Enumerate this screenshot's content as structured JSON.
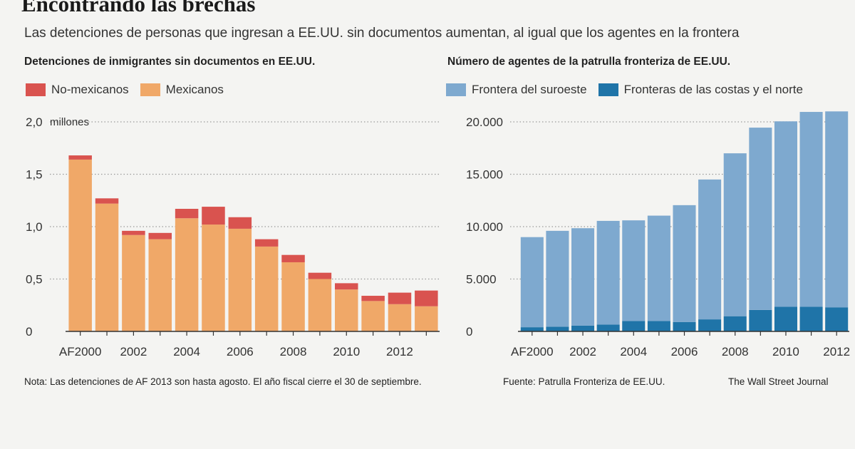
{
  "header": {
    "title": "Encontrando las brechas",
    "subtitle": "Las detenciones de personas que ingresan a EE.UU. sin documentos  aumentan,  al igual que los agentes en la frontera"
  },
  "footer": {
    "note": "Nota: Las detenciones de AF 2013 son hasta agosto. El año fiscal cierre el 30 de septiembre.",
    "source": "Fuente: Patrulla Fronteriza de EE.UU.",
    "credit": "The Wall Street Journal"
  },
  "chart_data": [
    {
      "type": "bar",
      "stacked": true,
      "title": "Detenciones de inmigrantes sin documentos en EE.UU.",
      "unit_label": "millones",
      "x": [
        2000,
        2001,
        2002,
        2003,
        2004,
        2005,
        2006,
        2007,
        2008,
        2009,
        2010,
        2011,
        2012,
        2013
      ],
      "x_tick_labels": [
        {
          "x": 2000,
          "label": "AF2000"
        },
        {
          "x": 2002,
          "label": "2002"
        },
        {
          "x": 2004,
          "label": "2004"
        },
        {
          "x": 2006,
          "label": "2006"
        },
        {
          "x": 2008,
          "label": "2008"
        },
        {
          "x": 2010,
          "label": "2010"
        },
        {
          "x": 2012,
          "label": "2012"
        }
      ],
      "y_ticks": [
        {
          "value": 0,
          "label": "0"
        },
        {
          "value": 0.5,
          "label": "0,5"
        },
        {
          "value": 1.0,
          "label": "1,0"
        },
        {
          "value": 1.5,
          "label": "1,5"
        },
        {
          "value": 2.0,
          "label": "2,0"
        }
      ],
      "ylim": [
        0,
        2.0
      ],
      "grid": true,
      "legend_position": "top-left",
      "series": [
        {
          "name": "Mexicanos",
          "color": "#f0a868",
          "values": [
            1.64,
            1.22,
            0.92,
            0.88,
            1.08,
            1.02,
            0.98,
            0.81,
            0.66,
            0.5,
            0.4,
            0.29,
            0.26,
            0.24
          ]
        },
        {
          "name": "No-mexicanos",
          "color": "#d9534f",
          "values": [
            0.04,
            0.05,
            0.04,
            0.06,
            0.09,
            0.17,
            0.11,
            0.07,
            0.07,
            0.06,
            0.06,
            0.05,
            0.11,
            0.15
          ]
        }
      ],
      "legend_order": [
        "No-mexicanos",
        "Mexicanos"
      ]
    },
    {
      "type": "bar",
      "stacked": true,
      "title": "Número de agentes de la patrulla fronteriza de EE.UU.",
      "x": [
        2000,
        2001,
        2002,
        2003,
        2004,
        2005,
        2006,
        2007,
        2008,
        2009,
        2010,
        2011,
        2012
      ],
      "x_tick_labels": [
        {
          "x": 2000,
          "label": "AF2000"
        },
        {
          "x": 2002,
          "label": "2002"
        },
        {
          "x": 2004,
          "label": "2004"
        },
        {
          "x": 2006,
          "label": "2006"
        },
        {
          "x": 2008,
          "label": "2008"
        },
        {
          "x": 2010,
          "label": "2010"
        },
        {
          "x": 2012,
          "label": "2012"
        }
      ],
      "y_ticks": [
        {
          "value": 0,
          "label": "0"
        },
        {
          "value": 5000,
          "label": "5.000"
        },
        {
          "value": 10000,
          "label": "10.000"
        },
        {
          "value": 15000,
          "label": "15.000"
        },
        {
          "value": 20000,
          "label": "20.000"
        }
      ],
      "ylim": [
        0,
        20000
      ],
      "grid": true,
      "legend_position": "top",
      "series": [
        {
          "name": "Fronteras de las costas y el norte",
          "color": "#1f74a8",
          "values": [
            400,
            450,
            550,
            650,
            1000,
            1000,
            900,
            1150,
            1450,
            2050,
            2350,
            2350,
            2300
          ]
        },
        {
          "name": "Frontera del suroeste",
          "color": "#7ea9cf",
          "values": [
            8600,
            9150,
            9300,
            9900,
            9600,
            10050,
            11150,
            13350,
            15550,
            17400,
            17700,
            18600,
            18700
          ]
        }
      ],
      "legend_order": [
        "Frontera del suroeste",
        "Fronteras de las costas y el norte"
      ]
    }
  ]
}
